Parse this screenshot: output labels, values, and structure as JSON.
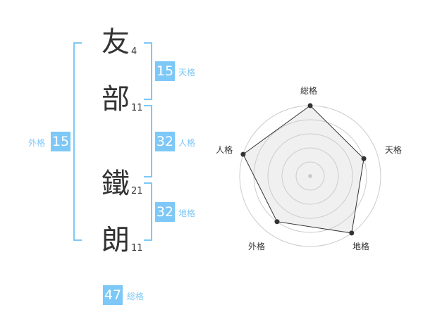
{
  "accent_color": "#7dc8f7",
  "name_chars": [
    {
      "char": "友",
      "strokes": "4"
    },
    {
      "char": "部",
      "strokes": "11"
    },
    {
      "char": "鐵",
      "strokes": "21"
    },
    {
      "char": "朗",
      "strokes": "11"
    }
  ],
  "kaku": {
    "tenkaku": {
      "label": "天格",
      "value": "15"
    },
    "jinkaku": {
      "label": "人格",
      "value": "32"
    },
    "chikaku": {
      "label": "地格",
      "value": "32"
    },
    "gaikaku": {
      "label": "外格",
      "value": "15"
    },
    "soukaku": {
      "label": "総格",
      "value": "47"
    }
  },
  "chart_data": {
    "type": "radar",
    "axes": [
      "総格",
      "天格",
      "地格",
      "外格",
      "人格"
    ],
    "values": [
      5,
      4,
      5,
      4,
      5
    ],
    "range": [
      0,
      5
    ],
    "rings": 5,
    "fill_color": "#f0f0f0",
    "line_color": "#333333"
  }
}
